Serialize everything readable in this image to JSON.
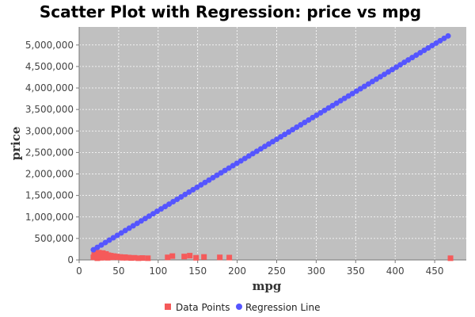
{
  "chart_data": {
    "type": "scatter",
    "title": "Scatter Plot with Regression: price vs mpg",
    "xlabel": "mpg",
    "ylabel": "price",
    "xlim": [
      0,
      490
    ],
    "ylim": [
      0,
      5420000
    ],
    "x_ticks": [
      0,
      50,
      100,
      150,
      200,
      250,
      300,
      350,
      400,
      450
    ],
    "x_tick_labels": [
      "0",
      "50",
      "100",
      "150",
      "200",
      "250",
      "300",
      "350",
      "400",
      "450"
    ],
    "y_ticks": [
      0,
      500000,
      1000000,
      1500000,
      2000000,
      2500000,
      3000000,
      3500000,
      4000000,
      4500000,
      5000000
    ],
    "y_tick_labels": [
      "0",
      "500,000",
      "1,000,000",
      "1,500,000",
      "2,000,000",
      "2,500,000",
      "3,000,000",
      "3,500,000",
      "4,000,000",
      "4,500,000",
      "5,000,000"
    ],
    "grid": true,
    "legend_position": "bottom",
    "series": [
      {
        "name": "Data Points",
        "marker": "square",
        "color": "#f55a5a",
        "points": [
          [
            18,
            60000
          ],
          [
            19,
            120000
          ],
          [
            20,
            180000
          ],
          [
            21,
            90000
          ],
          [
            22,
            150000
          ],
          [
            23,
            40000
          ],
          [
            24,
            110000
          ],
          [
            25,
            170000
          ],
          [
            26,
            70000
          ],
          [
            27,
            130000
          ],
          [
            28,
            50000
          ],
          [
            29,
            100000
          ],
          [
            30,
            160000
          ],
          [
            31,
            80000
          ],
          [
            32,
            120000
          ],
          [
            33,
            60000
          ],
          [
            34,
            140000
          ],
          [
            35,
            90000
          ],
          [
            36,
            50000
          ],
          [
            37,
            110000
          ],
          [
            38,
            70000
          ],
          [
            40,
            100000
          ],
          [
            42,
            60000
          ],
          [
            44,
            90000
          ],
          [
            46,
            70000
          ],
          [
            48,
            80000
          ],
          [
            50,
            60000
          ],
          [
            52,
            70000
          ],
          [
            55,
            50000
          ],
          [
            58,
            65000
          ],
          [
            60,
            50000
          ],
          [
            63,
            55000
          ],
          [
            66,
            45000
          ],
          [
            70,
            50000
          ],
          [
            75,
            40000
          ],
          [
            80,
            45000
          ],
          [
            87,
            40000
          ],
          [
            112,
            60000
          ],
          [
            118,
            90000
          ],
          [
            133,
            80000
          ],
          [
            140,
            100000
          ],
          [
            148,
            50000
          ],
          [
            158,
            70000
          ],
          [
            178,
            60000
          ],
          [
            190,
            55000
          ],
          [
            470,
            40000
          ]
        ]
      },
      {
        "name": "Regression Line",
        "marker": "circle",
        "color": "#5555ff",
        "x_start": 18,
        "x_end": 467,
        "n_points": 90,
        "intercept": 37000,
        "slope": 11080
      }
    ]
  }
}
